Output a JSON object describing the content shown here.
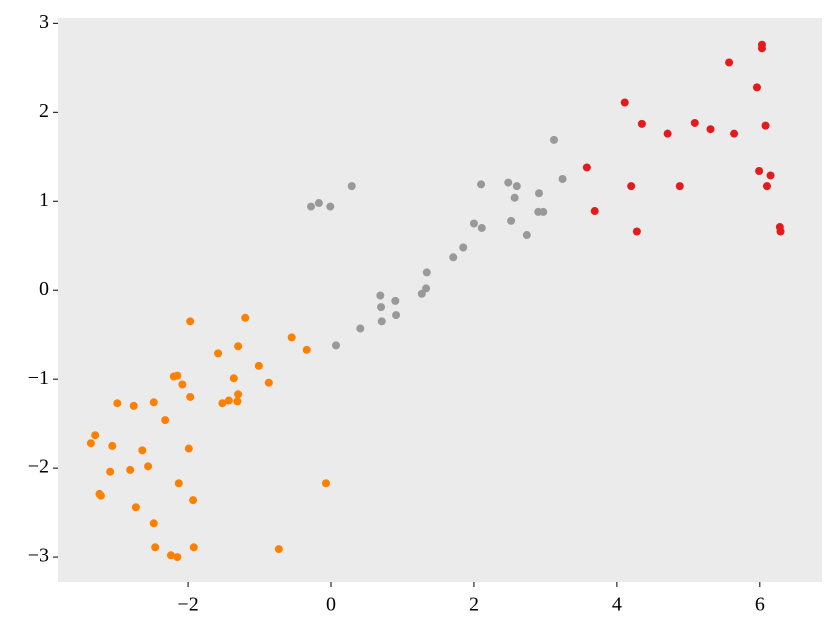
{
  "chart_data": {
    "type": "scatter",
    "xlim": [
      -3.82,
      6.87
    ],
    "ylim": [
      -3.28,
      3.06
    ],
    "xticks": [
      {
        "value": -2,
        "label": "−2"
      },
      0,
      2,
      4,
      6
    ],
    "yticks": [
      {
        "value": -3,
        "label": "−3"
      },
      {
        "value": -2,
        "label": "−2"
      },
      {
        "value": -1,
        "label": "−1"
      },
      0,
      1,
      2,
      3
    ],
    "background": "#ebebeb",
    "series": [
      {
        "color": "#ff7f00",
        "x": [
          -3.36,
          -3.3,
          -3.24,
          -3.22,
          -3.06,
          -3.09,
          -2.99,
          -2.81,
          -2.76,
          -2.73,
          -2.64,
          -2.56,
          -2.48,
          -2.48,
          -2.46,
          -2.32,
          -2.24,
          -2.2,
          -2.15,
          -2.15,
          -2.13,
          -2.08,
          -1.97,
          -1.97,
          -1.99,
          -1.93,
          -1.92,
          -1.58,
          -1.52,
          -1.43,
          -1.36,
          -1.3,
          -1.3,
          -1.31,
          -1.2,
          -1.01,
          -0.87,
          -0.73,
          -0.55,
          -0.34,
          -0.07
        ],
        "y": [
          -1.72,
          -1.63,
          -2.29,
          -2.31,
          -1.75,
          -2.04,
          -1.27,
          -2.02,
          -1.3,
          -2.44,
          -1.8,
          -1.98,
          -1.26,
          -2.62,
          -2.89,
          -1.46,
          -2.98,
          -0.97,
          -0.96,
          -3.0,
          -2.17,
          -1.06,
          -0.35,
          -1.2,
          -1.78,
          -2.36,
          -2.89,
          -0.71,
          -1.27,
          -1.24,
          -0.99,
          -0.63,
          -1.17,
          -1.25,
          -0.31,
          -0.85,
          -1.04,
          -2.91,
          -0.53,
          -0.67,
          -2.17
        ]
      },
      {
        "color": "#999999",
        "x": [
          -0.28,
          -0.17,
          -0.01,
          0.29,
          0.07,
          0.41,
          0.69,
          0.7,
          0.71,
          0.9,
          0.91,
          1.27,
          1.33,
          1.34,
          1.71,
          1.85,
          2.0,
          2.11,
          2.1,
          2.48,
          2.52,
          2.57,
          2.6,
          2.74,
          2.91,
          2.9,
          2.97,
          3.12,
          3.24
        ],
        "y": [
          0.94,
          0.98,
          0.94,
          1.17,
          -0.62,
          -0.43,
          -0.06,
          -0.19,
          -0.35,
          -0.12,
          -0.28,
          -0.04,
          0.02,
          0.2,
          0.37,
          0.48,
          0.75,
          0.7,
          1.19,
          1.21,
          0.78,
          1.04,
          1.17,
          0.62,
          1.09,
          0.88,
          0.88,
          1.69,
          1.25
        ]
      },
      {
        "color": "#e41a1c",
        "x": [
          3.58,
          3.69,
          4.11,
          4.2,
          4.28,
          4.35,
          4.71,
          4.88,
          5.09,
          5.31,
          5.57,
          5.64,
          5.96,
          5.99,
          6.03,
          6.03,
          6.08,
          6.1,
          6.15,
          6.28,
          6.29
        ],
        "y": [
          1.38,
          0.89,
          2.11,
          1.17,
          0.66,
          1.87,
          1.76,
          1.17,
          1.88,
          1.81,
          2.56,
          1.76,
          2.28,
          1.34,
          2.76,
          2.72,
          1.85,
          1.17,
          1.29,
          0.71,
          0.66
        ]
      }
    ]
  }
}
